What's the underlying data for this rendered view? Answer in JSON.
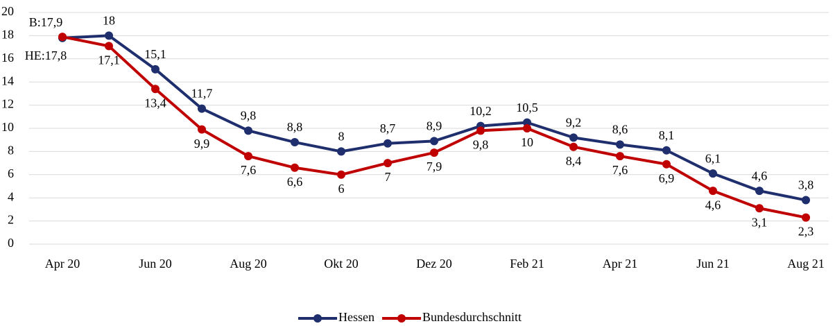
{
  "chart_data": {
    "type": "line",
    "categories": [
      "Apr 20",
      null,
      "Jun 20",
      null,
      "Aug 20",
      null,
      "Okt 20",
      null,
      "Dez 20",
      null,
      "Feb 21",
      null,
      "Apr 21",
      null,
      "Jun 21",
      null,
      "Aug 21"
    ],
    "series": [
      {
        "name": "Hessen",
        "color": "#1f2f6e",
        "values": [
          17.8,
          18,
          15.1,
          11.7,
          9.8,
          8.8,
          8,
          8.7,
          8.9,
          10.2,
          10.5,
          9.2,
          8.6,
          8.1,
          6.1,
          4.6,
          3.8
        ],
        "value_labels": [
          "HE:17,8",
          "18",
          "15,1",
          "11,7",
          "9,8",
          "8,8",
          "8",
          "8,7",
          "8,9",
          "10,2",
          "10,5",
          "9,2",
          "8,6",
          "8,1",
          "6,1",
          "4,6",
          "3,8"
        ]
      },
      {
        "name": "Bundesdurchschnitt",
        "color": "#c00000",
        "values": [
          17.9,
          17.1,
          13.4,
          9.9,
          7.6,
          6.6,
          6,
          7,
          7.9,
          9.8,
          10,
          8.4,
          7.6,
          6.9,
          4.6,
          3.1,
          2.3
        ],
        "value_labels": [
          "B:17,9",
          "17,1",
          "13,4",
          "9,9",
          "7,6",
          "6,6",
          "6",
          "7",
          "7,9",
          "9,8",
          "10",
          "8,4",
          "7,6",
          "6,9",
          "4,6",
          "3,1",
          "2,3"
        ]
      }
    ],
    "ylim": [
      0,
      20
    ],
    "yticks": [
      0,
      2,
      4,
      6,
      8,
      10,
      12,
      14,
      16,
      18,
      20
    ],
    "grid": true,
    "legend": "bottom"
  }
}
